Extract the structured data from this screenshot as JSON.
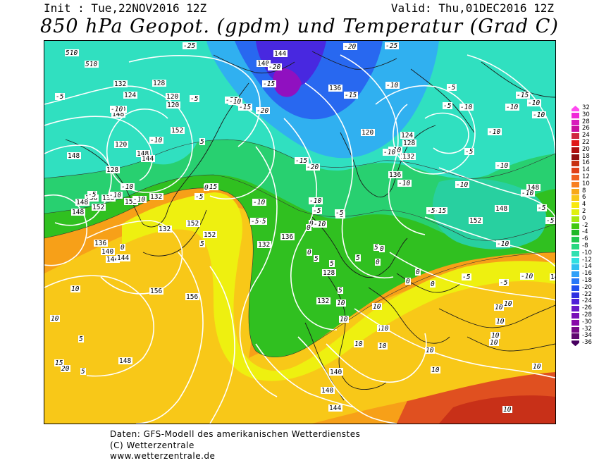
{
  "header": {
    "init": "Init : Tue,22NOV2016 12Z",
    "valid": "Valid: Thu,01DEC2016 12Z",
    "title": "850 hPa Geopot. (gpdm) und Temperatur (Grad C)"
  },
  "scale": {
    "labels": [
      "32",
      "30",
      "28",
      "26",
      "24",
      "22",
      "20",
      "18",
      "16",
      "14",
      "12",
      "10",
      "8",
      "6",
      "4",
      "2",
      "0",
      "-2",
      "-4",
      "-6",
      "-8",
      "-10",
      "-12",
      "-14",
      "-16",
      "-18",
      "-20",
      "-22",
      "-24",
      "-26",
      "-28",
      "-30",
      "-32",
      "-34",
      "-36"
    ],
    "colors": [
      "#ff4af0",
      "#f028d8",
      "#d81cbc",
      "#c810a0",
      "#d02840",
      "#e01818",
      "#b01010",
      "#901010",
      "#c83010",
      "#e04018",
      "#f06020",
      "#f88020",
      "#f8a818",
      "#f8c818",
      "#f8e810",
      "#e0f010",
      "#a8e810",
      "#40c810",
      "#20b828",
      "#20c850",
      "#28d880",
      "#30e0b0",
      "#30e0e0",
      "#30c0f0",
      "#30a0f8",
      "#2878f8",
      "#2050f0",
      "#3030e0",
      "#5020d8",
      "#6818c8",
      "#7810b8",
      "#8808a8",
      "#780888",
      "#600870",
      "#480060"
    ]
  },
  "map_labels": {
    "geopotential": [
      "144",
      "140",
      "136",
      "132",
      "128",
      "124",
      "120",
      "120",
      "140",
      "148",
      "152",
      "148",
      "144",
      "136",
      "132",
      "128",
      "136",
      "152",
      "148",
      "152",
      "144",
      "136",
      "140",
      "144",
      "136",
      "132",
      "148",
      "152",
      "148",
      "156",
      "132",
      "152",
      "156",
      "136",
      "140",
      "144",
      "148",
      "120",
      "116",
      "124",
      "128",
      "132",
      "136",
      "132",
      "128",
      "152",
      "148",
      "148",
      "144",
      "140",
      "120"
    ],
    "temperature": [
      "-10",
      "-10",
      "-25",
      "-25",
      "-20",
      "-20",
      "-20",
      "-25",
      "-5",
      "-10",
      "-5",
      "-10",
      "-15",
      "-15",
      "-10",
      "-10",
      "-5",
      "-10",
      "-15",
      "-15",
      "-20",
      "-15",
      "-10",
      "-10",
      "-10",
      "-5",
      "-10",
      "-5",
      "-5",
      "-10",
      "-10",
      "-10",
      "-15",
      "-10",
      "-10",
      "-10",
      "-15",
      "-10",
      "-5",
      "-5",
      "-5",
      "-5",
      "-10",
      "-10",
      "-10",
      "-5",
      "-10",
      "-5",
      "-5",
      "-5",
      "-5",
      "-10",
      "-5",
      "-5",
      "-10",
      "-10",
      "0",
      "0",
      "0",
      "0",
      "5",
      "5",
      "5",
      "5",
      "0",
      "0",
      "0",
      "0",
      "0",
      "0",
      "5",
      "5",
      "5",
      "10",
      "10",
      "10",
      "10",
      "10",
      "10",
      "10",
      "10",
      "10",
      "10",
      "10",
      "10",
      "10",
      "10",
      "10",
      "10",
      "10",
      "10",
      "15",
      "20",
      "5",
      "5",
      "5",
      "5"
    ]
  },
  "footer": {
    "line1": "Daten: GFS-Modell des amerikanischen Wetterdienstes",
    "line2": "(C) Wetterzentrale",
    "line3": "www.wetterzentrale.de"
  }
}
